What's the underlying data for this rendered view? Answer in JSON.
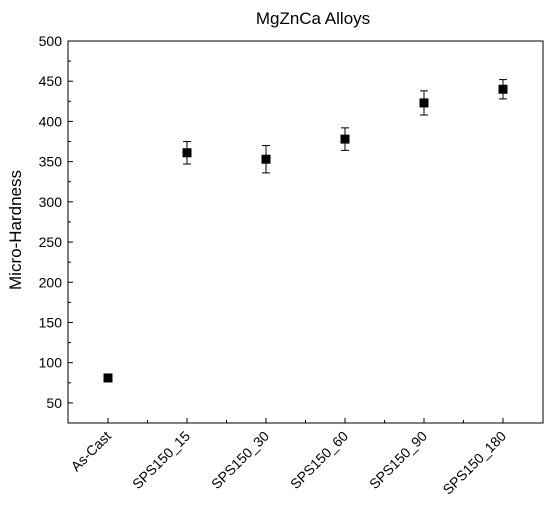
{
  "chart_data": {
    "type": "scatter",
    "title": "MgZnCa Alloys",
    "xlabel": "",
    "ylabel": "Micro-Hardness",
    "categories": [
      "As-Cast",
      "SPS150_15",
      "SPS150_30",
      "SPS150_60",
      "SPS150_90",
      "SPS150_180"
    ],
    "values": [
      81,
      361,
      353,
      378,
      423,
      440
    ],
    "error": [
      0,
      14,
      17,
      14,
      15,
      12
    ],
    "ylim": [
      25,
      500
    ],
    "yticks": [
      50,
      100,
      150,
      200,
      250,
      300,
      350,
      400,
      450,
      500
    ],
    "grid": false,
    "marker": "square",
    "color": "#000000"
  }
}
